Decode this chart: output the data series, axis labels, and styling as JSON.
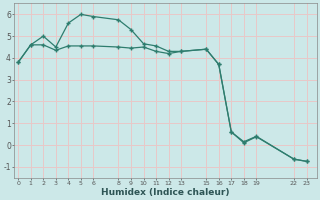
{
  "line1_x": [
    0,
    1,
    2,
    3,
    4,
    5,
    6,
    8,
    9,
    10,
    11,
    12,
    13,
    15,
    16,
    17,
    18,
    19,
    22,
    23
  ],
  "line1_y": [
    3.8,
    4.6,
    5.0,
    4.5,
    5.6,
    6.0,
    5.9,
    5.75,
    5.3,
    4.65,
    4.55,
    4.3,
    4.3,
    4.4,
    3.7,
    0.6,
    0.15,
    0.4,
    -0.65,
    -0.75
  ],
  "line2_x": [
    0,
    1,
    2,
    3,
    4,
    5,
    6,
    8,
    9,
    10,
    11,
    12,
    13,
    15,
    16,
    17,
    18,
    19,
    22,
    23
  ],
  "line2_y": [
    3.8,
    4.6,
    4.6,
    4.35,
    4.55,
    4.55,
    4.55,
    4.5,
    4.45,
    4.5,
    4.3,
    4.2,
    4.3,
    4.4,
    3.7,
    0.6,
    0.1,
    0.38,
    -0.65,
    -0.75
  ],
  "line_color": "#2e7d6e",
  "background_color": "#cce8e8",
  "grid_color": "#e8c8c8",
  "xlabel": "Humidex (Indice chaleur)",
  "yticks": [
    -1,
    0,
    1,
    2,
    3,
    4,
    5,
    6
  ],
  "xtick_labels": [
    "0",
    "1",
    "2",
    "3",
    "4",
    "5",
    "6",
    "8",
    "9",
    "10",
    "11",
    "12",
    "13",
    "15",
    "16",
    "17",
    "18",
    "19",
    "22",
    "23"
  ],
  "xtick_positions": [
    0,
    1,
    2,
    3,
    4,
    5,
    6,
    8,
    9,
    10,
    11,
    12,
    13,
    15,
    16,
    17,
    18,
    19,
    22,
    23
  ],
  "xlim": [
    -0.3,
    23.8
  ],
  "ylim": [
    -1.5,
    6.5
  ]
}
